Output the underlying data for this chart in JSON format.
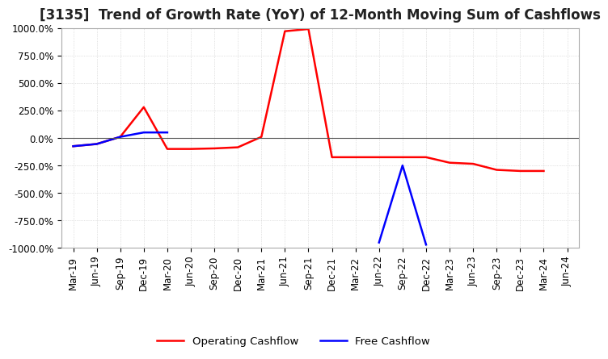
{
  "title": "[3135]  Trend of Growth Rate (YoY) of 12-Month Moving Sum of Cashflows",
  "ylim": [
    -1000,
    1000
  ],
  "yticks": [
    -1000,
    -750,
    -500,
    -250,
    0,
    250,
    500,
    750,
    1000
  ],
  "legend_labels": [
    "Operating Cashflow",
    "Free Cashflow"
  ],
  "legend_colors": [
    "red",
    "blue"
  ],
  "x_labels": [
    "Mar-19",
    "Jun-19",
    "Sep-19",
    "Dec-19",
    "Mar-20",
    "Jun-20",
    "Sep-20",
    "Dec-20",
    "Mar-21",
    "Jun-21",
    "Sep-21",
    "Dec-21",
    "Mar-22",
    "Jun-22",
    "Sep-22",
    "Dec-22",
    "Mar-23",
    "Jun-23",
    "Sep-23",
    "Dec-23",
    "Mar-24",
    "Jun-24"
  ],
  "operating_cashflow": [
    -75,
    -55,
    10,
    280,
    -100,
    -100,
    -95,
    -85,
    10,
    970,
    990,
    -175,
    -175,
    -175,
    -175,
    -175,
    -225,
    -235,
    -290,
    -300,
    -300,
    null
  ],
  "free_cashflow": [
    -75,
    -55,
    10,
    50,
    50,
    null,
    null,
    null,
    null,
    null,
    null,
    null,
    null,
    -950,
    -250,
    -970,
    null,
    null,
    null,
    null,
    null,
    null
  ],
  "background_color": "#ffffff",
  "grid_color": "#c8c8c8",
  "title_fontsize": 12,
  "tick_fontsize": 8.5
}
